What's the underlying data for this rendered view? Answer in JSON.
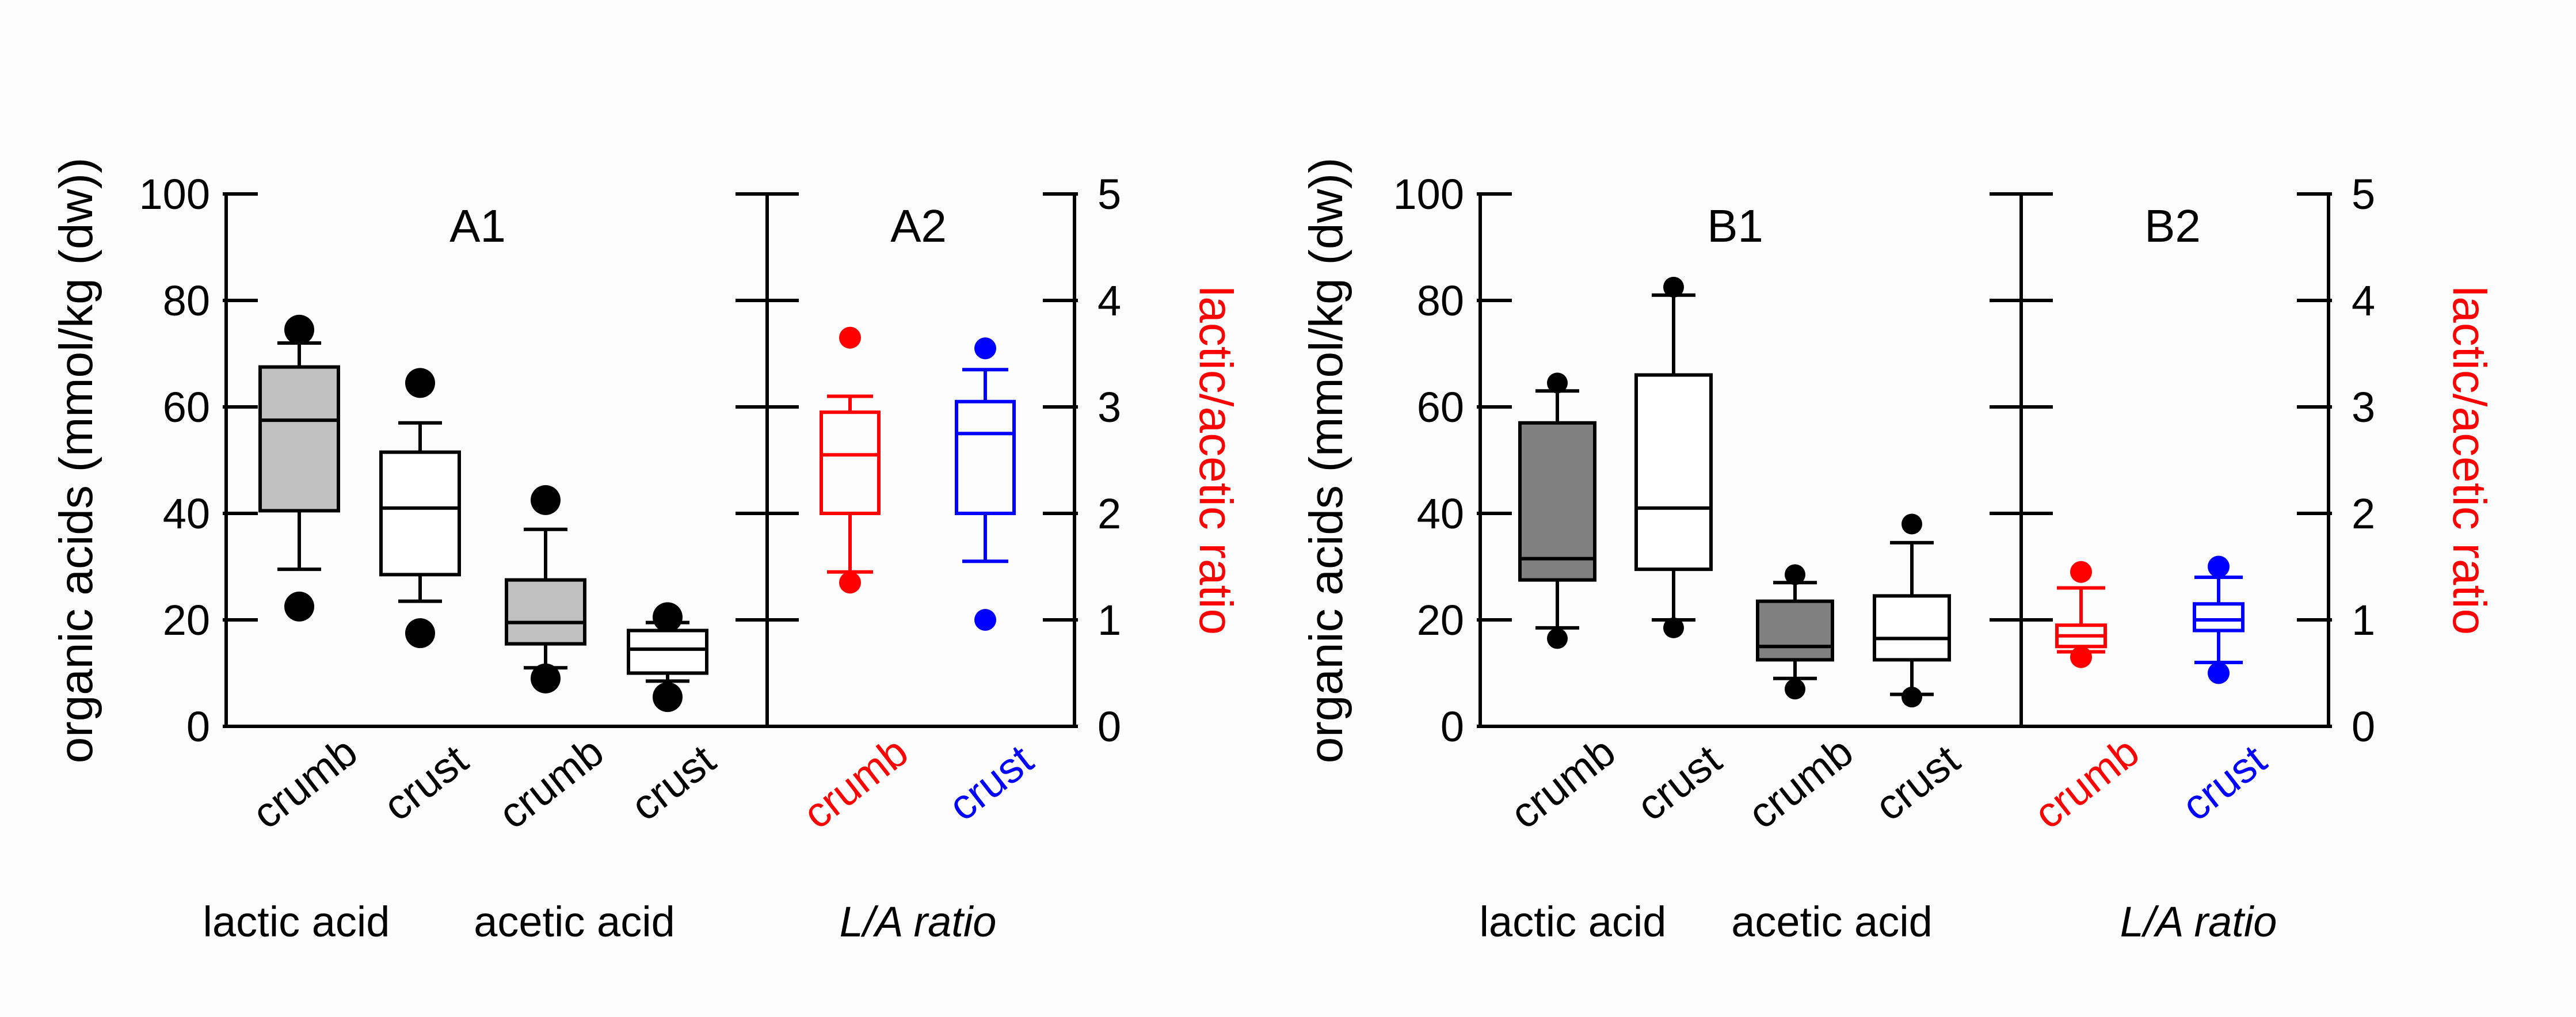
{
  "chart_data": [
    {
      "type": "boxplot",
      "panels": [
        {
          "title": "A1",
          "ylabel": "organic acids (mmol/kg (dw))",
          "ylim": [
            0,
            100
          ],
          "yticks": [
            "0",
            "20",
            "40",
            "60",
            "80",
            "100"
          ],
          "groups": [
            {
              "label": "lactic acid",
              "categories": [
                {
                  "label": "crumb",
                  "fill": "#c0c0c0",
                  "stroke": "#000000",
                  "whisker_low": 29.5,
                  "q1": 40.5,
                  "median": 57.5,
                  "q3": 67.5,
                  "whisker_high": 72,
                  "outliers": [
                    74.5,
                    22.5
                  ]
                },
                {
                  "label": "crust",
                  "fill": "#ffffff",
                  "stroke": "#000000",
                  "whisker_low": 23.5,
                  "q1": 28.5,
                  "median": 41,
                  "q3": 51.5,
                  "whisker_high": 57,
                  "outliers": [
                    64.5,
                    17.5
                  ]
                }
              ]
            },
            {
              "label": "acetic acid",
              "categories": [
                {
                  "label": "crumb",
                  "fill": "#c0c0c0",
                  "stroke": "#000000",
                  "whisker_low": 11,
                  "q1": 15.5,
                  "median": 19.5,
                  "q3": 27.5,
                  "whisker_high": 37,
                  "outliers": [
                    42.5,
                    9
                  ]
                },
                {
                  "label": "crust",
                  "fill": "#ffffff",
                  "stroke": "#000000",
                  "whisker_low": 8.5,
                  "q1": 10,
                  "median": 14.5,
                  "q3": 18,
                  "whisker_high": 19.5,
                  "outliers": [
                    20.5,
                    5.5
                  ]
                }
              ]
            }
          ]
        },
        {
          "title": "A2",
          "ylabel": "lactic/acetic ratio",
          "ylim": [
            0,
            5
          ],
          "yticks": [
            "0",
            "1",
            "2",
            "3",
            "4",
            "5"
          ],
          "groups": [
            {
              "label": "L/A ratio",
              "categories": [
                {
                  "label": "crumb",
                  "fill": "none",
                  "stroke": "#ff0000",
                  "whisker_low": 1.45,
                  "q1": 2.0,
                  "median": 2.55,
                  "q3": 2.95,
                  "whisker_high": 3.1,
                  "outliers": [
                    3.65,
                    1.35
                  ]
                },
                {
                  "label": "crust",
                  "fill": "none",
                  "stroke": "#0000ff",
                  "whisker_low": 1.55,
                  "q1": 2.0,
                  "median": 2.75,
                  "q3": 3.05,
                  "whisker_high": 3.35,
                  "outliers": [
                    3.55,
                    1.0
                  ]
                }
              ]
            }
          ]
        },
        {
          "title": "B1",
          "ylabel": "organic acids (mmol/kg (dw))",
          "ylim": [
            0,
            100
          ],
          "yticks": [
            "0",
            "20",
            "40",
            "60",
            "80",
            "100"
          ],
          "groups": [
            {
              "label": "lactic acid",
              "categories": [
                {
                  "label": "crumb",
                  "fill": "#808080",
                  "stroke": "#000000",
                  "whisker_low": 18.5,
                  "q1": 27.5,
                  "median": 31.5,
                  "q3": 57,
                  "whisker_high": 63,
                  "outliers": [
                    64.5,
                    16.5
                  ]
                },
                {
                  "label": "crust",
                  "fill": "#ffffff",
                  "stroke": "#000000",
                  "whisker_low": 20,
                  "q1": 29.5,
                  "median": 41,
                  "q3": 66,
                  "whisker_high": 81,
                  "outliers": [
                    82.5,
                    18.5
                  ]
                }
              ]
            },
            {
              "label": "acetic acid",
              "categories": [
                {
                  "label": "crumb",
                  "fill": "#808080",
                  "stroke": "#000000",
                  "whisker_low": 9,
                  "q1": 12.5,
                  "median": 15,
                  "q3": 23.5,
                  "whisker_high": 27,
                  "outliers": [
                    28.5,
                    7
                  ]
                },
                {
                  "label": "crust",
                  "fill": "#ffffff",
                  "stroke": "#000000",
                  "whisker_low": 6,
                  "q1": 12.5,
                  "median": 16.5,
                  "q3": 24.5,
                  "whisker_high": 34.5,
                  "outliers": [
                    38,
                    5.5
                  ]
                }
              ]
            }
          ]
        },
        {
          "title": "B2",
          "ylabel": "lactic/acetic ratio",
          "ylim": [
            0,
            5
          ],
          "yticks": [
            "0",
            "1",
            "2",
            "3",
            "4",
            "5"
          ],
          "groups": [
            {
              "label": "L/A ratio",
              "categories": [
                {
                  "label": "crumb",
                  "fill": "none",
                  "stroke": "#ff0000",
                  "whisker_low": 0.7,
                  "q1": 0.75,
                  "median": 0.85,
                  "q3": 0.95,
                  "whisker_high": 1.3,
                  "outliers": [
                    1.45,
                    0.65
                  ]
                },
                {
                  "label": "crust",
                  "fill": "none",
                  "stroke": "#0000ff",
                  "whisker_low": 0.6,
                  "q1": 0.9,
                  "median": 1.0,
                  "q3": 1.15,
                  "whisker_high": 1.4,
                  "outliers": [
                    1.5,
                    0.5
                  ]
                }
              ]
            }
          ]
        }
      ]
    }
  ],
  "colors": {
    "axis": "#000000",
    "crumb_ratio": "#ff0000",
    "crust_ratio": "#0000ff"
  }
}
